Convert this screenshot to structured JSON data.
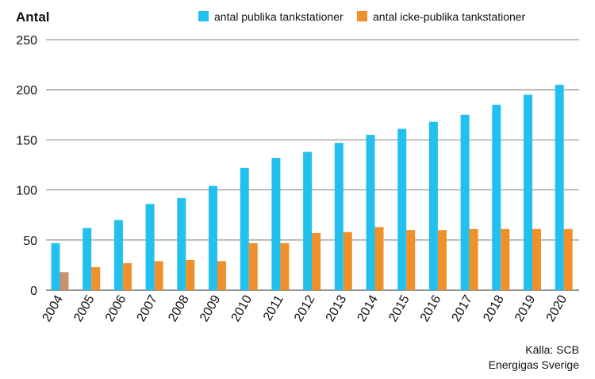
{
  "colors": {
    "series1": "#22c0ee",
    "series2": "#f0902a",
    "grid": "#555555"
  },
  "chart_data": {
    "type": "bar",
    "ylabel": "Antal",
    "ylim": [
      0,
      250
    ],
    "yticks": [
      0,
      50,
      100,
      150,
      200,
      250
    ],
    "grid": true,
    "legend_position": "top",
    "categories": [
      "2004",
      "2005",
      "2006",
      "2007",
      "2008",
      "2009",
      "2010",
      "2011",
      "2012",
      "2013",
      "2014",
      "2015",
      "2016",
      "2017",
      "2018",
      "2019",
      "2020"
    ],
    "series": [
      {
        "name": "antal publika tankstationer",
        "values": [
          47,
          62,
          70,
          86,
          92,
          104,
          122,
          132,
          138,
          147,
          155,
          161,
          168,
          175,
          185,
          195,
          205
        ]
      },
      {
        "name": "antal icke-publika tankstationer",
        "values": [
          18,
          23,
          27,
          29,
          30,
          29,
          47,
          47,
          57,
          58,
          63,
          60,
          60,
          61,
          61,
          61,
          61
        ]
      }
    ]
  },
  "source": {
    "line1": "Källa: SCB",
    "line2": "Energigas Sverige"
  }
}
